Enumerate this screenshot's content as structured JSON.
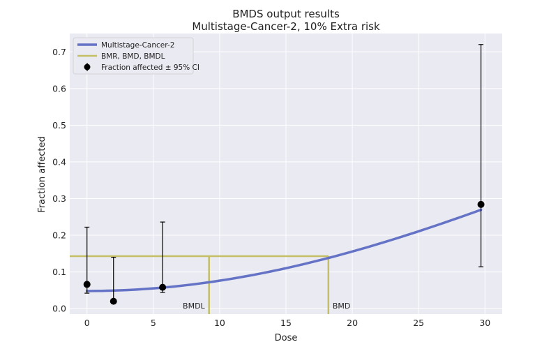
{
  "chart_data": {
    "type": "line",
    "title": "BMDS output results",
    "subtitle": "Multistage-Cancer-2, 10% Extra risk",
    "xlabel": "Dose",
    "ylabel": "Fraction affected",
    "xlim": [
      -1.3,
      31.3
    ],
    "ylim": [
      -0.015,
      0.75
    ],
    "xticks": [
      0,
      5,
      10,
      15,
      20,
      25,
      30
    ],
    "yticks": [
      0.0,
      0.1,
      0.2,
      0.3,
      0.4,
      0.5,
      0.6,
      0.7
    ],
    "grid": true,
    "legend_position": "top-left",
    "legend": [
      "Multistage-Cancer-2",
      "BMR, BMD, BMDL",
      "Fraction affected ± 95% CI"
    ],
    "colors": {
      "model": "#6573c6",
      "bmr": "#c4bf66",
      "points": "#000000",
      "background": "#eaeaf2"
    },
    "model_curve": {
      "name": "Multistage-Cancer-2",
      "background": 0.048,
      "beta2": 0.0003,
      "x_range": [
        0,
        29.7
      ]
    },
    "bmr_lines": {
      "name": "BMR, BMD, BMDL",
      "bmr_response": 0.143,
      "bmd": 18.2,
      "bmdl": 9.2,
      "bmd_label": "BMD",
      "bmdl_label": "BMDL"
    },
    "observations": {
      "name": "Fraction affected ± 95% CI",
      "points": [
        {
          "x": 0,
          "y": 0.066,
          "lower": 0.042,
          "upper": 0.222
        },
        {
          "x": 2,
          "y": 0.02,
          "lower": 0.02,
          "upper": 0.14
        },
        {
          "x": 5.7,
          "y": 0.058,
          "lower": 0.044,
          "upper": 0.236
        },
        {
          "x": 29.7,
          "y": 0.284,
          "lower": 0.114,
          "upper": 0.72
        }
      ]
    }
  }
}
